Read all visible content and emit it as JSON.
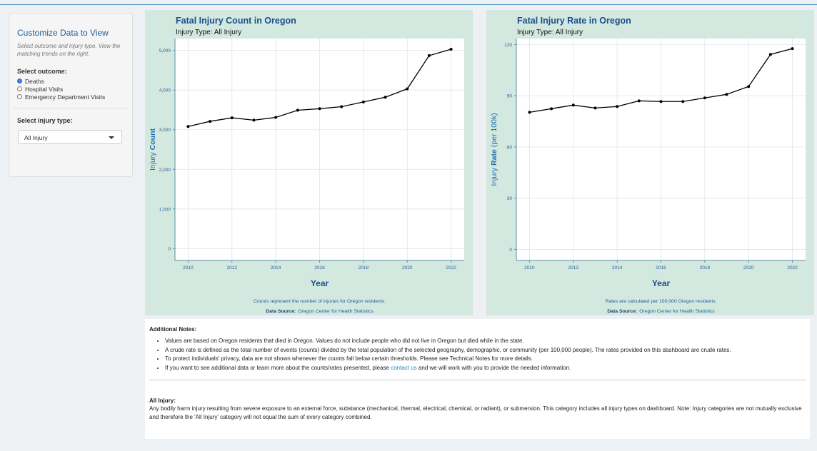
{
  "sidebar": {
    "title": "Customize Data to View",
    "description": "Select outcome and injury type. View the matching trends on the right.",
    "outcome_label": "Select outcome:",
    "outcomes": [
      "Deaths",
      "Hospital Visits",
      "Emergency Department Visits"
    ],
    "selected": "Deaths",
    "injury_label": "Select injury type:",
    "injury_selected": "All Injury"
  },
  "chart_data": [
    {
      "type": "line",
      "title": "Fatal Injury Count in Oregon",
      "subtitle": "Injury Type: All Injury",
      "ylabel": {
        "text": "Injury",
        "bold": "Count"
      },
      "xlabel": "Year",
      "note": "Counts represent the number of injuries for Oregon residents.",
      "source_label": "Data Source:",
      "source": "Oregon Center for Health Statistics",
      "x": [
        2010,
        2011,
        2012,
        2013,
        2014,
        2015,
        2016,
        2017,
        2018,
        2019,
        2020,
        2021,
        2022
      ],
      "values": [
        3080,
        3210,
        3300,
        3240,
        3310,
        3490,
        3530,
        3580,
        3700,
        3820,
        4030,
        4870,
        5030
      ],
      "color": "#000000",
      "xlim": [
        2009.4,
        2022.6
      ],
      "xticks": [
        2010,
        2012,
        2014,
        2016,
        2018,
        2020,
        2022
      ],
      "ylim": [
        -300,
        5300
      ],
      "yticks": [
        0,
        {
          "value": 1000,
          "label": "1,000"
        },
        {
          "value": 2000,
          "label": "2,000"
        },
        {
          "value": 3000,
          "label": "3,000"
        },
        {
          "value": 4000,
          "label": "4,000"
        },
        {
          "value": 5000,
          "label": "5,000"
        }
      ],
      "grid": true
    },
    {
      "type": "line",
      "title": "Fatal Injury Rate in Oregon",
      "subtitle": "Injury Type: All Injury",
      "ylabel": {
        "text": "Injury",
        "bold": "Rate",
        "suffix": "(per 100k)"
      },
      "xlabel": "Year",
      "note": "Rates are calculated per 100,000 Oregon residents.",
      "source_label": "Data Source:",
      "source": "Oregon Center for Health Statistics",
      "x": [
        2010,
        2011,
        2012,
        2013,
        2014,
        2015,
        2016,
        2017,
        2018,
        2019,
        2020,
        2021,
        2022
      ],
      "values": [
        80.3,
        82.4,
        84.5,
        82.8,
        83.7,
        87.0,
        86.6,
        86.6,
        88.7,
        90.8,
        95.4,
        114.2,
        117.6
      ],
      "color": "#000000",
      "xlim": [
        2009.4,
        2022.6
      ],
      "xticks": [
        2010,
        2012,
        2014,
        2016,
        2018,
        2020,
        2022
      ],
      "ylim": [
        -6.5,
        123.5
      ],
      "yticks": [
        0,
        30,
        60,
        90,
        120
      ],
      "grid": true
    }
  ],
  "notes": {
    "title": "Additional Notes:",
    "items": [
      "Values are based on Oregon residents that died in Oregon. Values do not include people who did not live in Oregon but died while in the state.",
      "A crude rate is defined as the total number of events (counts) divided by the total population of the selected geography, demographic, or community (per 100,000 people). The rates provided on this dashboard are crude rates.",
      "To protect individuals' privacy, data are not shown whenever the counts fall below certain thresholds. Please see Technical Notes for more details."
    ],
    "contact": {
      "before": "If you want to see additional data or learn more about the counts/rates presented, please",
      "link": "contact us",
      "after": "and we will work with you to provide the needed information."
    },
    "definition_title": "All Injury:",
    "definition": "Any bodily harm injury resulting from severe exposure to an external force, substance (mechanical, thermal, electrical, chemical, or radiant), or submersion. This category includes all injury types on dashboard. Note: Injury categories are not mutually exclusive and therefore the 'All Injury' category will not equal the sum of every category combined."
  }
}
